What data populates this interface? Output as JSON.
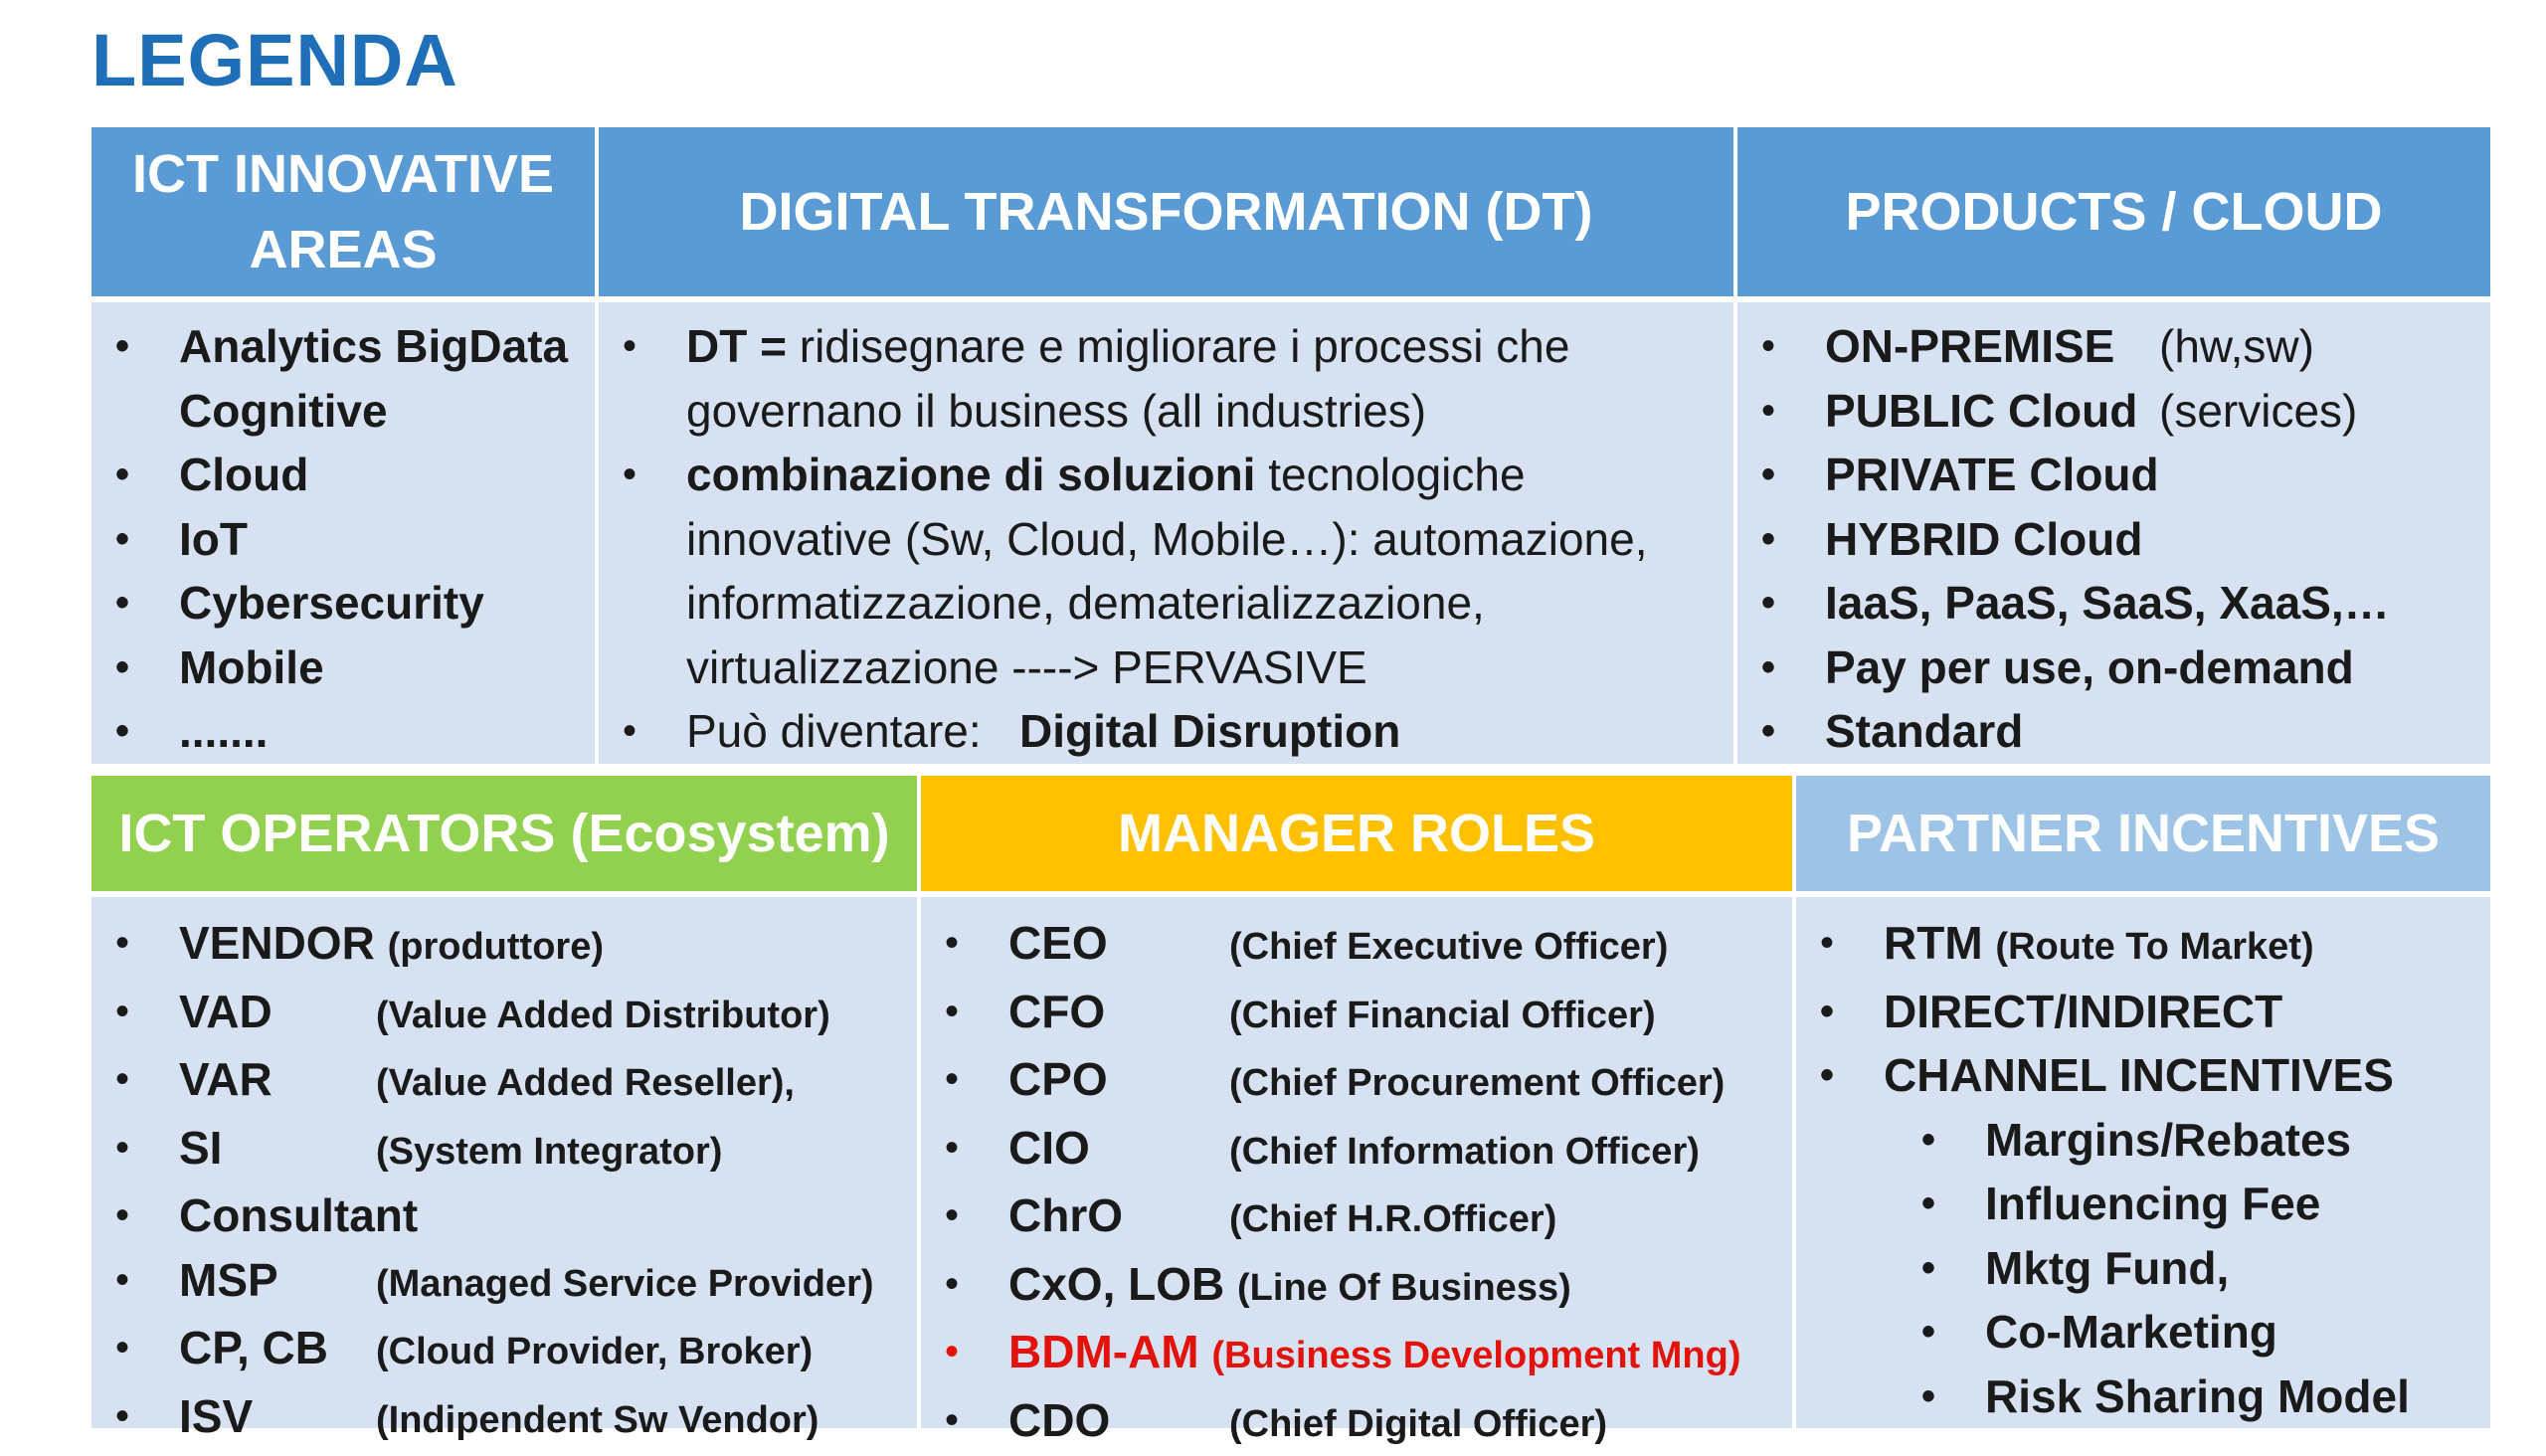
{
  "title": "LEGENDA",
  "top": {
    "headers": [
      "ICT INNOVATIVE AREAS",
      "DIGITAL TRANSFORMATION (DT)",
      "PRODUCTS / CLOUD"
    ],
    "innovative_areas": [
      "Analytics BigData",
      "Cognitive",
      "Cloud",
      "IoT",
      "Cybersecurity",
      "Mobile",
      "......."
    ],
    "dt": {
      "item1_bold": "DT =",
      "item1_text": " ridisegnare e migliorare i processi che governano il business (all industries)",
      "item2_bold": "combinazione di soluzioni",
      "item2_text": " tecnologiche innovative (Sw, Cloud, Mobile…): automazione, informatizzazione, dematerializzazione, virtualizzazione ----> PERVASIVE",
      "item3_text": "Può diventare:   ",
      "item3_bold": "Digital Disruption"
    },
    "products": [
      {
        "bold": "ON-PREMISE",
        "note": "(hw,sw)"
      },
      {
        "bold": "PUBLIC Cloud",
        "note": "(services)"
      },
      {
        "bold": "PRIVATE Cloud",
        "note": ""
      },
      {
        "bold": "HYBRID Cloud",
        "note": ""
      },
      {
        "bold": "IaaS, PaaS, SaaS, XaaS,…",
        "note": ""
      },
      {
        "bold": "Pay per use, on-demand",
        "note": ""
      },
      {
        "bold": "Standard",
        "note": ""
      }
    ]
  },
  "bottom": {
    "headers": [
      "ICT OPERATORS (Ecosystem)",
      "MANAGER ROLES",
      "PARTNER INCENTIVES"
    ],
    "operators": [
      {
        "abbr": "VENDOR",
        "desc": "(produttore)"
      },
      {
        "abbr": "VAD",
        "desc": "(Value Added Distributor)"
      },
      {
        "abbr": "VAR",
        "desc": "(Value Added Reseller),"
      },
      {
        "abbr": "SI",
        "desc": "(System Integrator)"
      },
      {
        "abbr": "Consultant",
        "desc": ""
      },
      {
        "abbr": "MSP",
        "desc": "(Managed Service Provider)"
      },
      {
        "abbr": "CP, CB",
        "desc": "(Cloud Provider, Broker)"
      },
      {
        "abbr": "ISV",
        "desc": "(Indipendent Sw Vendor)"
      }
    ],
    "roles": [
      {
        "abbr": "CEO",
        "desc": "(Chief Executive Officer)"
      },
      {
        "abbr": "CFO",
        "desc": "(Chief Financial Officer)"
      },
      {
        "abbr": "CPO",
        "desc": "(Chief Procurement Officer)"
      },
      {
        "abbr": "CIO",
        "desc": "(Chief Information Officer)"
      },
      {
        "abbr": "ChrO",
        "desc": "(Chief H.R.Officer)"
      },
      {
        "abbr": "CxO, LOB",
        "desc": "(Line Of Business)"
      },
      {
        "abbr": "BDM-AM",
        "desc": "(Business Development Mng)"
      },
      {
        "abbr": "CDO",
        "desc": "(Chief Digital Officer)"
      }
    ],
    "incentives": {
      "rtm_abbr": "RTM",
      "rtm_desc": "(Route To Market)",
      "direct": "DIRECT/INDIRECT",
      "channel": "CHANNEL INCENTIVES",
      "sub": [
        "Margins/Rebates",
        "Influencing Fee",
        "Mktg Fund,",
        "Co-Marketing",
        "Risk Sharing Model"
      ]
    }
  },
  "colors": {
    "title": "#1f6fb8",
    "header_blue": "#5b9bd5",
    "header_green": "#92d050",
    "header_orange": "#ffc000",
    "header_lightblue": "#9dc3e6",
    "cell_bg": "#d6e2f1",
    "highlight_red": "#e3120b"
  }
}
